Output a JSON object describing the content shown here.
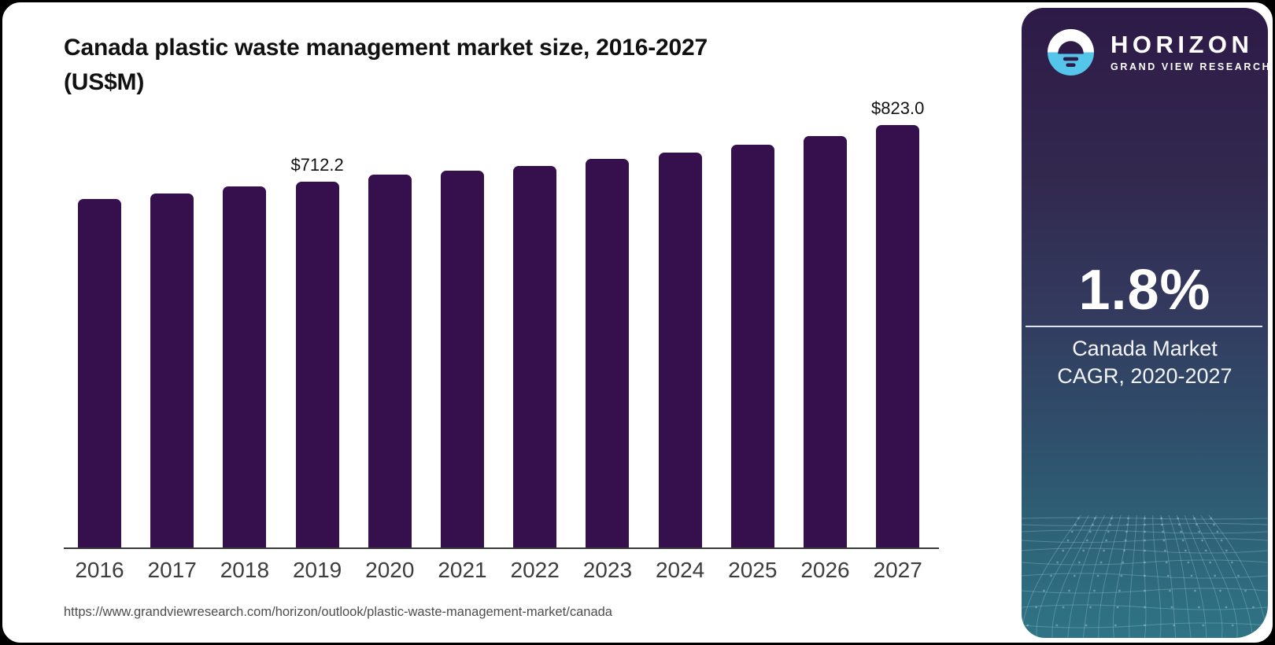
{
  "chart": {
    "title_line1": "Canada plastic waste management market size, 2016-2027",
    "title_line2": "(US$M)",
    "source_url": "https://www.grandviewresearch.com/horizon/outlook/plastic-waste-management-market/canada"
  },
  "chart_data": {
    "type": "bar",
    "title": "Canada plastic waste management market size, 2016-2027 (US$M)",
    "categories": [
      "2016",
      "2017",
      "2018",
      "2019",
      "2020",
      "2021",
      "2022",
      "2023",
      "2024",
      "2025",
      "2026",
      "2027"
    ],
    "values": [
      679.0,
      690.2,
      702.9,
      712.2,
      726.4,
      734.1,
      742.8,
      756.6,
      769.8,
      785.1,
      801.4,
      823.0
    ],
    "data_labels": {
      "2019": "$712.2",
      "2027": "$823.0"
    },
    "xlabel": "",
    "ylabel": "US$M",
    "ylim": [
      0,
      860
    ],
    "grid": false,
    "legend": "none",
    "bar_color": "#36104d"
  },
  "sidebar": {
    "brand": {
      "name": "HORIZON",
      "tagline": "GRAND VIEW RESEARCH",
      "logo_icon": "sunset-horizon-icon",
      "logo_blue": "#56c5ea",
      "logo_dark": "#2e1a47"
    },
    "stat": {
      "value": "1.8%",
      "label_line1": "Canada Market",
      "label_line2": "CAGR, 2020-2027"
    },
    "colors": {
      "gradient_top": "#2e1a47",
      "gradient_bottom": "#2f7486",
      "mesh_line": "#a8d4dd"
    }
  }
}
